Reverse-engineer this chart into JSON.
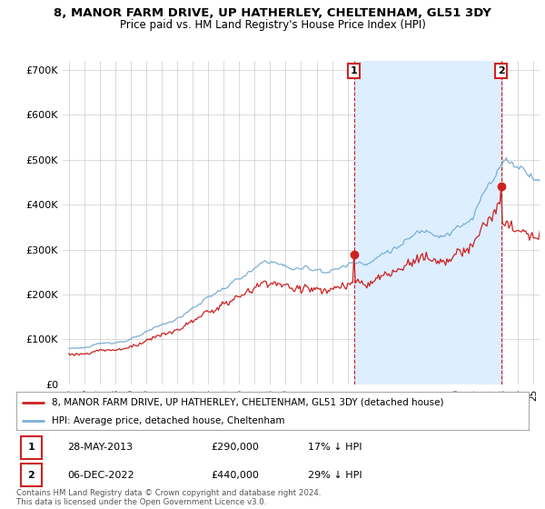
{
  "title": "8, MANOR FARM DRIVE, UP HATHERLEY, CHELTENHAM, GL51 3DY",
  "subtitle": "Price paid vs. HM Land Registry's House Price Index (HPI)",
  "ylim": [
    0,
    720000
  ],
  "yticks": [
    0,
    100000,
    200000,
    300000,
    400000,
    500000,
    600000,
    700000
  ],
  "ytick_labels": [
    "£0",
    "£100K",
    "£200K",
    "£300K",
    "£400K",
    "£500K",
    "£600K",
    "£700K"
  ],
  "hpi_color": "#7bafd4",
  "hpi_fill_color": "#ddeeff",
  "price_color": "#cc2222",
  "marker_line_color": "#cc2222",
  "marker1_date": 2013.41,
  "marker1_price": 290000,
  "marker2_date": 2022.92,
  "marker2_price": 440000,
  "legend_property": "8, MANOR FARM DRIVE, UP HATHERLEY, CHELTENHAM, GL51 3DY (detached house)",
  "legend_hpi": "HPI: Average price, detached house, Cheltenham",
  "footnote": "Contains HM Land Registry data © Crown copyright and database right 2024.\nThis data is licensed under the Open Government Licence v3.0.",
  "background_color": "#ffffff",
  "grid_color": "#cccccc",
  "xstart": 1995,
  "xend": 2025
}
